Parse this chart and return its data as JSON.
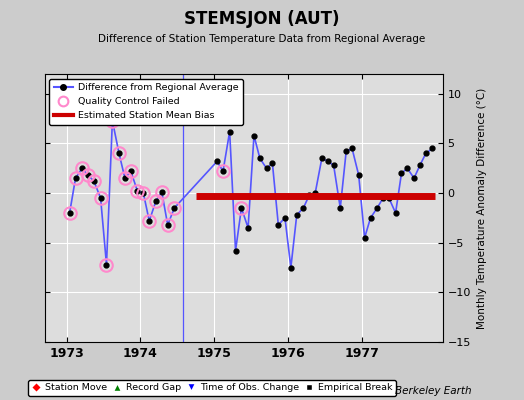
{
  "title": "STEMSJON (AUT)",
  "subtitle": "Difference of Station Temperature Data from Regional Average",
  "ylabel": "Monthly Temperature Anomaly Difference (°C)",
  "bias": -0.3,
  "ylim": [
    -15,
    12
  ],
  "yticks": [
    -15,
    -10,
    -5,
    0,
    5,
    10
  ],
  "xlim": [
    1972.7,
    1978.1
  ],
  "xticks": [
    1973,
    1974,
    1975,
    1976,
    1977
  ],
  "months": [
    1973.04,
    1973.12,
    1973.21,
    1973.29,
    1973.37,
    1973.46,
    1973.54,
    1973.62,
    1973.71,
    1973.79,
    1973.87,
    1973.96,
    1974.04,
    1974.12,
    1974.21,
    1974.29,
    1974.37,
    1974.46,
    1975.04,
    1975.12,
    1975.21,
    1975.29,
    1975.37,
    1975.46,
    1975.54,
    1975.62,
    1975.71,
    1975.79,
    1975.87,
    1975.96,
    1976.04,
    1976.12,
    1976.21,
    1976.29,
    1976.37,
    1976.46,
    1976.54,
    1976.62,
    1976.71,
    1976.79,
    1976.87,
    1976.96,
    1977.04,
    1977.12,
    1977.21,
    1977.29,
    1977.37,
    1977.46,
    1977.54,
    1977.62,
    1977.71,
    1977.79,
    1977.87,
    1977.96
  ],
  "values": [
    -2.0,
    1.5,
    2.5,
    1.8,
    1.2,
    -0.5,
    -7.2,
    7.3,
    4.0,
    1.5,
    2.2,
    0.2,
    0.0,
    -2.8,
    -0.8,
    0.1,
    -3.2,
    -1.5,
    3.2,
    2.2,
    6.2,
    -5.8,
    -1.5,
    -3.5,
    5.8,
    3.5,
    2.5,
    3.0,
    -3.2,
    -2.5,
    -7.5,
    -2.2,
    -1.5,
    -0.2,
    -0.0,
    3.5,
    3.2,
    2.8,
    -1.5,
    4.2,
    4.5,
    1.8,
    -4.5,
    -2.5,
    -1.5,
    -0.5,
    -0.5,
    -2.0,
    2.0,
    2.5,
    1.5,
    2.8,
    4.0,
    4.5
  ],
  "qc_failed": [
    0,
    1,
    2,
    3,
    4,
    5,
    6,
    7,
    8,
    9,
    10,
    11,
    12,
    13,
    14,
    15,
    16,
    17,
    19,
    22
  ],
  "gap_line_x": 1974.58,
  "line_color": "#5555ff",
  "dot_color": "#000000",
  "qc_color_edge": "#ff88cc",
  "bias_color": "#cc0000",
  "bias_linewidth": 5,
  "bias_start": 1974.75,
  "bias_end": 1977.99,
  "fig_bg": "#cccccc",
  "plot_bg": "#dddddd"
}
